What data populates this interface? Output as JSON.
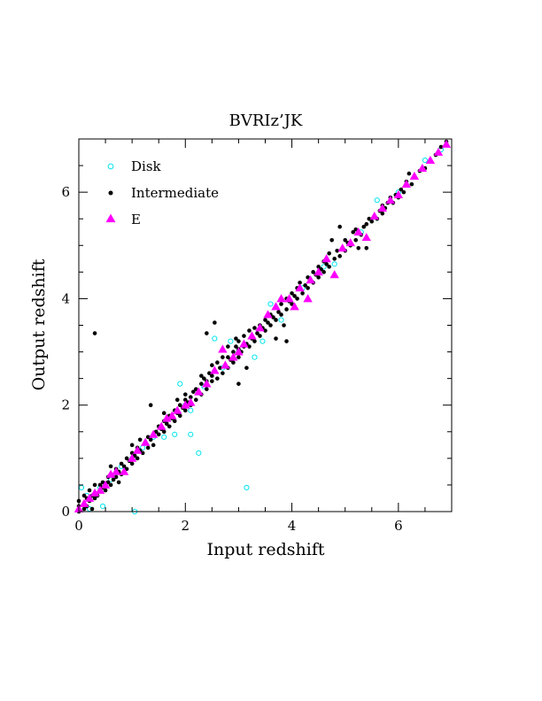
{
  "chart_data": {
    "type": "scatter",
    "title": "BVRIz’JK",
    "xlabel": "Input redshift",
    "ylabel": "Output redshift",
    "xlim": [
      0,
      7
    ],
    "ylim": [
      0,
      7
    ],
    "xticks": [
      0,
      2,
      4,
      6
    ],
    "yticks": [
      0,
      2,
      4,
      6
    ],
    "xtick_labels": [
      "0",
      "2",
      "4",
      "6"
    ],
    "ytick_labels": [
      "0",
      "2",
      "4",
      "6"
    ],
    "minor_tick_step": 0.5,
    "grid": false,
    "legend_position": "top-left",
    "series": [
      {
        "name": "Disk",
        "marker": "open-circle",
        "color": "#00e5ee",
        "points": [
          [
            0.05,
            0.45
          ],
          [
            0.15,
            0.3
          ],
          [
            0.2,
            0.05
          ],
          [
            0.45,
            0.1
          ],
          [
            0.4,
            0.45
          ],
          [
            0.6,
            0.6
          ],
          [
            0.8,
            0.85
          ],
          [
            1.0,
            1.0
          ],
          [
            1.05,
            0.0
          ],
          [
            1.2,
            1.2
          ],
          [
            1.4,
            1.4
          ],
          [
            1.6,
            1.4
          ],
          [
            1.8,
            1.45
          ],
          [
            1.9,
            2.4
          ],
          [
            2.0,
            2.0
          ],
          [
            2.1,
            1.45
          ],
          [
            2.1,
            1.9
          ],
          [
            2.25,
            1.1
          ],
          [
            2.35,
            2.35
          ],
          [
            2.55,
            3.25
          ],
          [
            2.7,
            2.7
          ],
          [
            2.85,
            3.2
          ],
          [
            3.0,
            3.0
          ],
          [
            3.15,
            0.45
          ],
          [
            3.3,
            2.9
          ],
          [
            3.45,
            3.2
          ],
          [
            3.6,
            3.9
          ],
          [
            3.8,
            3.6
          ],
          [
            4.2,
            4.2
          ],
          [
            4.6,
            4.6
          ],
          [
            4.8,
            4.65
          ],
          [
            5.3,
            5.25
          ],
          [
            5.6,
            5.85
          ],
          [
            6.0,
            6.0
          ],
          [
            6.5,
            6.6
          ],
          [
            6.8,
            6.8
          ]
        ]
      },
      {
        "name": "Intermediate",
        "marker": "filled-dot",
        "color": "#000000",
        "points": [
          [
            0.0,
            0.0
          ],
          [
            0.0,
            0.05
          ],
          [
            0.0,
            0.1
          ],
          [
            0.0,
            0.2
          ],
          [
            0.1,
            0.05
          ],
          [
            0.1,
            0.15
          ],
          [
            0.1,
            0.3
          ],
          [
            0.15,
            0.1
          ],
          [
            0.15,
            0.25
          ],
          [
            0.2,
            0.2
          ],
          [
            0.2,
            0.4
          ],
          [
            0.25,
            0.05
          ],
          [
            0.25,
            0.3
          ],
          [
            0.3,
            0.25
          ],
          [
            0.3,
            0.35
          ],
          [
            0.3,
            0.5
          ],
          [
            0.3,
            3.35
          ],
          [
            0.35,
            0.3
          ],
          [
            0.4,
            0.4
          ],
          [
            0.4,
            0.5
          ],
          [
            0.45,
            0.45
          ],
          [
            0.45,
            0.55
          ],
          [
            0.5,
            0.4
          ],
          [
            0.5,
            0.5
          ],
          [
            0.55,
            0.55
          ],
          [
            0.55,
            0.65
          ],
          [
            0.6,
            0.5
          ],
          [
            0.6,
            0.7
          ],
          [
            0.6,
            0.85
          ],
          [
            0.65,
            0.6
          ],
          [
            0.7,
            0.65
          ],
          [
            0.7,
            0.8
          ],
          [
            0.75,
            0.55
          ],
          [
            0.75,
            0.75
          ],
          [
            0.8,
            0.7
          ],
          [
            0.8,
            0.9
          ],
          [
            0.85,
            0.85
          ],
          [
            0.9,
            0.8
          ],
          [
            0.9,
            1.0
          ],
          [
            0.95,
            0.95
          ],
          [
            1.0,
            0.9
          ],
          [
            1.0,
            1.1
          ],
          [
            1.0,
            1.25
          ],
          [
            1.05,
            1.05
          ],
          [
            1.1,
            1.0
          ],
          [
            1.1,
            1.2
          ],
          [
            1.15,
            1.15
          ],
          [
            1.15,
            1.35
          ],
          [
            1.2,
            1.1
          ],
          [
            1.25,
            1.3
          ],
          [
            1.3,
            1.2
          ],
          [
            1.3,
            1.4
          ],
          [
            1.35,
            1.35
          ],
          [
            1.35,
            2.0
          ],
          [
            1.4,
            1.25
          ],
          [
            1.4,
            1.45
          ],
          [
            1.45,
            1.5
          ],
          [
            1.5,
            1.45
          ],
          [
            1.5,
            1.6
          ],
          [
            1.55,
            1.55
          ],
          [
            1.6,
            1.5
          ],
          [
            1.6,
            1.7
          ],
          [
            1.6,
            1.85
          ],
          [
            1.65,
            1.65
          ],
          [
            1.7,
            1.6
          ],
          [
            1.7,
            1.8
          ],
          [
            1.75,
            1.75
          ],
          [
            1.8,
            1.7
          ],
          [
            1.8,
            1.9
          ],
          [
            1.85,
            1.85
          ],
          [
            1.85,
            2.1
          ],
          [
            1.9,
            1.8
          ],
          [
            1.9,
            2.0
          ],
          [
            1.95,
            1.95
          ],
          [
            2.0,
            1.9
          ],
          [
            2.0,
            2.1
          ],
          [
            2.0,
            2.2
          ],
          [
            2.05,
            2.05
          ],
          [
            2.1,
            2.0
          ],
          [
            2.1,
            2.15
          ],
          [
            2.15,
            2.25
          ],
          [
            2.2,
            2.1
          ],
          [
            2.2,
            2.3
          ],
          [
            2.25,
            2.25
          ],
          [
            2.3,
            2.2
          ],
          [
            2.3,
            2.4
          ],
          [
            2.3,
            2.55
          ],
          [
            2.35,
            2.5
          ],
          [
            2.4,
            2.3
          ],
          [
            2.4,
            2.45
          ],
          [
            2.4,
            3.35
          ],
          [
            2.45,
            2.6
          ],
          [
            2.5,
            2.45
          ],
          [
            2.5,
            2.55
          ],
          [
            2.5,
            2.75
          ],
          [
            2.55,
            2.65
          ],
          [
            2.55,
            3.55
          ],
          [
            2.6,
            2.5
          ],
          [
            2.6,
            2.8
          ],
          [
            2.65,
            2.7
          ],
          [
            2.7,
            2.6
          ],
          [
            2.7,
            2.9
          ],
          [
            2.75,
            2.75
          ],
          [
            2.8,
            2.7
          ],
          [
            2.8,
            2.9
          ],
          [
            2.8,
            3.1
          ],
          [
            2.85,
            2.85
          ],
          [
            2.9,
            2.8
          ],
          [
            2.9,
            3.0
          ],
          [
            2.95,
            3.1
          ],
          [
            2.95,
            3.25
          ],
          [
            3.0,
            2.4
          ],
          [
            3.0,
            2.9
          ],
          [
            3.0,
            3.05
          ],
          [
            3.0,
            3.2
          ],
          [
            3.05,
            3.0
          ],
          [
            3.1,
            3.1
          ],
          [
            3.1,
            3.3
          ],
          [
            3.15,
            2.7
          ],
          [
            3.15,
            3.15
          ],
          [
            3.2,
            3.1
          ],
          [
            3.2,
            3.4
          ],
          [
            3.25,
            3.25
          ],
          [
            3.3,
            3.2
          ],
          [
            3.3,
            3.45
          ],
          [
            3.35,
            3.35
          ],
          [
            3.4,
            3.3
          ],
          [
            3.4,
            3.5
          ],
          [
            3.45,
            3.45
          ],
          [
            3.5,
            3.4
          ],
          [
            3.5,
            3.6
          ],
          [
            3.55,
            3.55
          ],
          [
            3.6,
            3.5
          ],
          [
            3.6,
            3.7
          ],
          [
            3.65,
            3.65
          ],
          [
            3.7,
            3.25
          ],
          [
            3.7,
            3.6
          ],
          [
            3.7,
            3.85
          ],
          [
            3.75,
            3.75
          ],
          [
            3.8,
            3.7
          ],
          [
            3.8,
            3.9
          ],
          [
            3.85,
            3.5
          ],
          [
            3.9,
            3.2
          ],
          [
            3.9,
            3.8
          ],
          [
            3.9,
            4.0
          ],
          [
            3.95,
            3.95
          ],
          [
            4.0,
            3.9
          ],
          [
            4.0,
            4.1
          ],
          [
            4.05,
            4.05
          ],
          [
            4.1,
            4.0
          ],
          [
            4.1,
            4.2
          ],
          [
            4.15,
            4.3
          ],
          [
            4.2,
            4.1
          ],
          [
            4.25,
            4.25
          ],
          [
            4.3,
            4.2
          ],
          [
            4.3,
            4.4
          ],
          [
            4.35,
            4.35
          ],
          [
            4.4,
            4.3
          ],
          [
            4.4,
            4.5
          ],
          [
            4.45,
            4.45
          ],
          [
            4.5,
            4.4
          ],
          [
            4.5,
            4.6
          ],
          [
            4.55,
            4.55
          ],
          [
            4.6,
            4.5
          ],
          [
            4.6,
            4.7
          ],
          [
            4.65,
            4.65
          ],
          [
            4.7,
            4.6
          ],
          [
            4.7,
            4.85
          ],
          [
            4.75,
            5.1
          ],
          [
            4.8,
            4.75
          ],
          [
            4.85,
            4.9
          ],
          [
            4.9,
            4.8
          ],
          [
            4.9,
            5.35
          ],
          [
            4.95,
            4.95
          ],
          [
            5.0,
            4.9
          ],
          [
            5.0,
            5.1
          ],
          [
            5.05,
            5.05
          ],
          [
            5.1,
            5.0
          ],
          [
            5.15,
            5.25
          ],
          [
            5.2,
            5.1
          ],
          [
            5.2,
            5.3
          ],
          [
            5.25,
            4.95
          ],
          [
            5.3,
            5.2
          ],
          [
            5.35,
            5.35
          ],
          [
            5.4,
            4.95
          ],
          [
            5.4,
            5.4
          ],
          [
            5.45,
            5.5
          ],
          [
            5.5,
            5.45
          ],
          [
            5.55,
            5.55
          ],
          [
            5.6,
            5.5
          ],
          [
            5.65,
            5.65
          ],
          [
            5.7,
            5.6
          ],
          [
            5.7,
            5.75
          ],
          [
            5.75,
            5.7
          ],
          [
            5.8,
            5.8
          ],
          [
            5.85,
            5.9
          ],
          [
            5.9,
            5.8
          ],
          [
            5.95,
            5.95
          ],
          [
            6.0,
            5.9
          ],
          [
            6.05,
            6.05
          ],
          [
            6.1,
            6.0
          ],
          [
            6.15,
            6.2
          ],
          [
            6.2,
            6.35
          ],
          [
            6.25,
            6.15
          ],
          [
            6.3,
            6.3
          ],
          [
            6.4,
            6.4
          ],
          [
            6.5,
            6.45
          ],
          [
            6.6,
            6.6
          ],
          [
            6.7,
            6.7
          ],
          [
            6.8,
            6.85
          ],
          [
            6.9,
            6.95
          ]
        ]
      },
      {
        "name": "E",
        "marker": "filled-triangle",
        "color": "#ff00ff",
        "points": [
          [
            0.0,
            0.05
          ],
          [
            0.1,
            0.15
          ],
          [
            0.2,
            0.25
          ],
          [
            0.3,
            0.35
          ],
          [
            0.4,
            0.4
          ],
          [
            0.5,
            0.5
          ],
          [
            0.6,
            0.7
          ],
          [
            0.7,
            0.75
          ],
          [
            0.85,
            0.75
          ],
          [
            1.0,
            1.0
          ],
          [
            1.1,
            1.15
          ],
          [
            1.25,
            1.3
          ],
          [
            1.4,
            1.45
          ],
          [
            1.55,
            1.6
          ],
          [
            1.65,
            1.75
          ],
          [
            1.75,
            1.8
          ],
          [
            1.85,
            1.9
          ],
          [
            2.0,
            2.0
          ],
          [
            2.1,
            2.05
          ],
          [
            2.25,
            2.25
          ],
          [
            2.4,
            2.4
          ],
          [
            2.55,
            2.65
          ],
          [
            2.7,
            3.05
          ],
          [
            2.75,
            2.75
          ],
          [
            2.9,
            2.9
          ],
          [
            3.0,
            3.0
          ],
          [
            3.1,
            3.15
          ],
          [
            3.25,
            3.3
          ],
          [
            3.4,
            3.45
          ],
          [
            3.55,
            3.7
          ],
          [
            3.7,
            3.85
          ],
          [
            3.8,
            4.0
          ],
          [
            3.95,
            4.0
          ],
          [
            4.05,
            3.85
          ],
          [
            4.15,
            4.2
          ],
          [
            4.3,
            4.0
          ],
          [
            4.35,
            4.35
          ],
          [
            4.5,
            4.5
          ],
          [
            4.65,
            4.75
          ],
          [
            4.8,
            4.45
          ],
          [
            4.95,
            4.95
          ],
          [
            5.1,
            5.05
          ],
          [
            5.25,
            5.25
          ],
          [
            5.4,
            5.15
          ],
          [
            5.55,
            5.55
          ],
          [
            5.7,
            5.7
          ],
          [
            5.85,
            5.85
          ],
          [
            6.0,
            5.95
          ],
          [
            6.15,
            6.15
          ],
          [
            6.3,
            6.3
          ],
          [
            6.45,
            6.45
          ],
          [
            6.6,
            6.6
          ],
          [
            6.75,
            6.75
          ],
          [
            6.9,
            6.9
          ]
        ]
      }
    ]
  }
}
